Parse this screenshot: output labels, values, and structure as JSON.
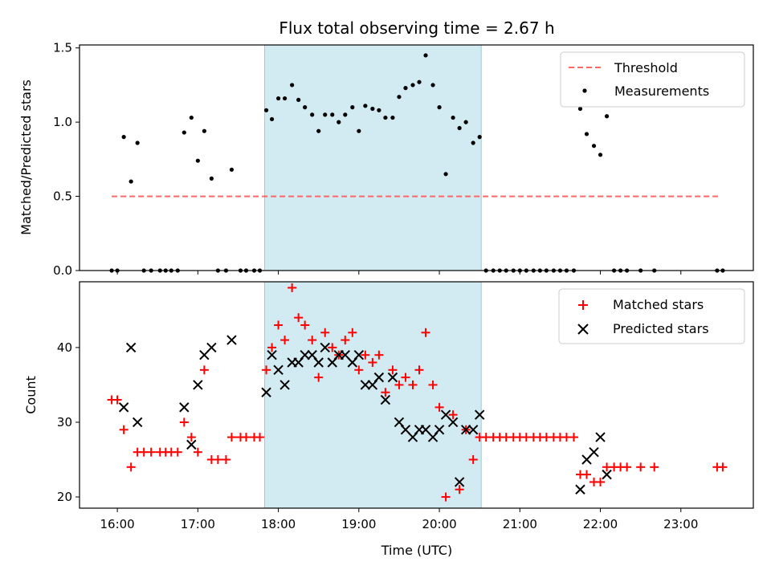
{
  "chart_data": {
    "type": "scatter",
    "title": "Flux total observing time = 2.67 h",
    "xlabel": "Time (UTC)",
    "x_unit": "hours UTC",
    "xlim": [
      15.53,
      23.9
    ],
    "xticks": [
      16,
      17,
      18,
      19,
      20,
      21,
      22,
      23
    ],
    "xtick_labels": [
      "16:00",
      "17:00",
      "18:00",
      "19:00",
      "20:00",
      "21:00",
      "22:00",
      "23:00"
    ],
    "observing_window": [
      17.83,
      20.52
    ],
    "window_color": "#add8e6",
    "top": {
      "ylabel": "Matched/Predicted stars",
      "ylim": [
        0,
        1.52
      ],
      "yticks": [
        0.0,
        0.5,
        1.0,
        1.5
      ],
      "ytick_labels": [
        "0.0",
        "0.5",
        "1.0",
        "1.5"
      ],
      "legend": {
        "threshold_label": "Threshold",
        "measurements_label": "Measurements"
      },
      "threshold": {
        "value": 0.5,
        "x": [
          15.93,
          23.48
        ],
        "color": "#ff6666"
      },
      "measurements": {
        "color": "#000000",
        "points": [
          [
            15.93,
            0
          ],
          [
            16.0,
            0
          ],
          [
            16.08,
            0.9
          ],
          [
            16.17,
            0.6
          ],
          [
            16.25,
            0.86
          ],
          [
            16.33,
            0
          ],
          [
            16.42,
            0
          ],
          [
            16.53,
            0
          ],
          [
            16.6,
            0
          ],
          [
            16.67,
            0
          ],
          [
            16.75,
            0
          ],
          [
            16.83,
            0.93
          ],
          [
            16.92,
            1.03
          ],
          [
            17.0,
            0.74
          ],
          [
            17.08,
            0.94
          ],
          [
            17.17,
            0.62
          ],
          [
            17.25,
            0
          ],
          [
            17.35,
            0
          ],
          [
            17.42,
            0.68
          ],
          [
            17.53,
            0
          ],
          [
            17.6,
            0
          ],
          [
            17.7,
            0
          ],
          [
            17.77,
            0
          ],
          [
            17.85,
            1.08
          ],
          [
            17.92,
            1.02
          ],
          [
            18.0,
            1.16
          ],
          [
            18.08,
            1.16
          ],
          [
            18.17,
            1.25
          ],
          [
            18.25,
            1.15
          ],
          [
            18.33,
            1.1
          ],
          [
            18.42,
            1.05
          ],
          [
            18.5,
            0.94
          ],
          [
            18.58,
            1.05
          ],
          [
            18.67,
            1.05
          ],
          [
            18.75,
            1.0
          ],
          [
            18.83,
            1.05
          ],
          [
            18.92,
            1.1
          ],
          [
            19.0,
            0.94
          ],
          [
            19.08,
            1.11
          ],
          [
            19.17,
            1.09
          ],
          [
            19.25,
            1.08
          ],
          [
            19.33,
            1.03
          ],
          [
            19.42,
            1.03
          ],
          [
            19.5,
            1.17
          ],
          [
            19.58,
            1.23
          ],
          [
            19.67,
            1.25
          ],
          [
            19.75,
            1.27
          ],
          [
            19.83,
            1.45
          ],
          [
            19.92,
            1.25
          ],
          [
            20.0,
            1.1
          ],
          [
            20.08,
            0.65
          ],
          [
            20.17,
            1.03
          ],
          [
            20.25,
            0.96
          ],
          [
            20.33,
            1.0
          ],
          [
            20.42,
            0.86
          ],
          [
            20.5,
            0.9
          ],
          [
            20.58,
            0
          ],
          [
            20.67,
            0
          ],
          [
            20.75,
            0
          ],
          [
            20.83,
            0
          ],
          [
            20.92,
            0
          ],
          [
            21.0,
            0
          ],
          [
            21.08,
            0
          ],
          [
            21.17,
            0
          ],
          [
            21.25,
            0
          ],
          [
            21.33,
            0
          ],
          [
            21.42,
            0
          ],
          [
            21.5,
            0
          ],
          [
            21.58,
            0
          ],
          [
            21.67,
            0
          ],
          [
            21.75,
            1.09
          ],
          [
            21.83,
            0.92
          ],
          [
            21.92,
            0.84
          ],
          [
            22.0,
            0.78
          ],
          [
            22.08,
            1.04
          ],
          [
            22.17,
            0
          ],
          [
            22.25,
            0
          ],
          [
            22.33,
            0
          ],
          [
            22.5,
            0
          ],
          [
            22.67,
            0
          ],
          [
            23.45,
            0
          ],
          [
            23.52,
            0
          ]
        ]
      }
    },
    "bottom": {
      "ylabel": "Count",
      "ylim": [
        18.5,
        48.8
      ],
      "yticks": [
        20,
        30,
        40
      ],
      "ytick_labels": [
        "20",
        "30",
        "40"
      ],
      "legend": {
        "matched_label": "Matched stars",
        "predicted_label": "Predicted stars"
      },
      "matched": {
        "color": "#ff0000",
        "points": [
          [
            15.93,
            33
          ],
          [
            16.0,
            33
          ],
          [
            16.08,
            29
          ],
          [
            16.17,
            24
          ],
          [
            16.25,
            26
          ],
          [
            16.33,
            26
          ],
          [
            16.42,
            26
          ],
          [
            16.53,
            26
          ],
          [
            16.6,
            26
          ],
          [
            16.67,
            26
          ],
          [
            16.75,
            26
          ],
          [
            16.83,
            30
          ],
          [
            16.92,
            28
          ],
          [
            17.0,
            26
          ],
          [
            17.08,
            37
          ],
          [
            17.17,
            25
          ],
          [
            17.25,
            25
          ],
          [
            17.35,
            25
          ],
          [
            17.42,
            28
          ],
          [
            17.53,
            28
          ],
          [
            17.6,
            28
          ],
          [
            17.7,
            28
          ],
          [
            17.77,
            28
          ],
          [
            17.85,
            37
          ],
          [
            17.92,
            40
          ],
          [
            18.0,
            43
          ],
          [
            18.08,
            41
          ],
          [
            18.17,
            48
          ],
          [
            18.25,
            44
          ],
          [
            18.33,
            43
          ],
          [
            18.42,
            41
          ],
          [
            18.5,
            36
          ],
          [
            18.58,
            42
          ],
          [
            18.67,
            40
          ],
          [
            18.75,
            39
          ],
          [
            18.83,
            41
          ],
          [
            18.92,
            42
          ],
          [
            19.0,
            37
          ],
          [
            19.08,
            39
          ],
          [
            19.17,
            38
          ],
          [
            19.25,
            39
          ],
          [
            19.33,
            34
          ],
          [
            19.42,
            37
          ],
          [
            19.5,
            35
          ],
          [
            19.58,
            36
          ],
          [
            19.67,
            35
          ],
          [
            19.75,
            37
          ],
          [
            19.83,
            42
          ],
          [
            19.92,
            35
          ],
          [
            20.0,
            32
          ],
          [
            20.08,
            20
          ],
          [
            20.17,
            31
          ],
          [
            20.25,
            21
          ],
          [
            20.33,
            29
          ],
          [
            20.42,
            25
          ],
          [
            20.5,
            28
          ],
          [
            20.58,
            28
          ],
          [
            20.67,
            28
          ],
          [
            20.75,
            28
          ],
          [
            20.83,
            28
          ],
          [
            20.92,
            28
          ],
          [
            21.0,
            28
          ],
          [
            21.08,
            28
          ],
          [
            21.17,
            28
          ],
          [
            21.25,
            28
          ],
          [
            21.33,
            28
          ],
          [
            21.42,
            28
          ],
          [
            21.5,
            28
          ],
          [
            21.58,
            28
          ],
          [
            21.67,
            28
          ],
          [
            21.75,
            23
          ],
          [
            21.83,
            23
          ],
          [
            21.92,
            22
          ],
          [
            22.0,
            22
          ],
          [
            22.08,
            24
          ],
          [
            22.17,
            24
          ],
          [
            22.25,
            24
          ],
          [
            22.33,
            24
          ],
          [
            22.5,
            24
          ],
          [
            22.67,
            24
          ],
          [
            23.45,
            24
          ],
          [
            23.52,
            24
          ]
        ]
      },
      "predicted": {
        "color": "#000000",
        "points": [
          [
            16.08,
            32
          ],
          [
            16.17,
            40
          ],
          [
            16.25,
            30
          ],
          [
            16.83,
            32
          ],
          [
            16.92,
            27
          ],
          [
            17.0,
            35
          ],
          [
            17.08,
            39
          ],
          [
            17.17,
            40
          ],
          [
            17.42,
            41
          ],
          [
            17.85,
            34
          ],
          [
            17.92,
            39
          ],
          [
            18.0,
            37
          ],
          [
            18.08,
            35
          ],
          [
            18.17,
            38
          ],
          [
            18.25,
            38
          ],
          [
            18.33,
            39
          ],
          [
            18.42,
            39
          ],
          [
            18.5,
            38
          ],
          [
            18.58,
            40
          ],
          [
            18.67,
            38
          ],
          [
            18.75,
            39
          ],
          [
            18.83,
            39
          ],
          [
            18.92,
            38
          ],
          [
            19.0,
            39
          ],
          [
            19.08,
            35
          ],
          [
            19.17,
            35
          ],
          [
            19.25,
            36
          ],
          [
            19.33,
            33
          ],
          [
            19.42,
            36
          ],
          [
            19.5,
            30
          ],
          [
            19.58,
            29
          ],
          [
            19.67,
            28
          ],
          [
            19.75,
            29
          ],
          [
            19.83,
            29
          ],
          [
            19.92,
            28
          ],
          [
            20.0,
            29
          ],
          [
            20.08,
            31
          ],
          [
            20.17,
            30
          ],
          [
            20.25,
            22
          ],
          [
            20.33,
            29
          ],
          [
            20.42,
            29
          ],
          [
            20.5,
            31
          ],
          [
            21.75,
            21
          ],
          [
            21.83,
            25
          ],
          [
            21.92,
            26
          ],
          [
            22.0,
            28
          ],
          [
            22.08,
            23
          ]
        ]
      }
    }
  }
}
